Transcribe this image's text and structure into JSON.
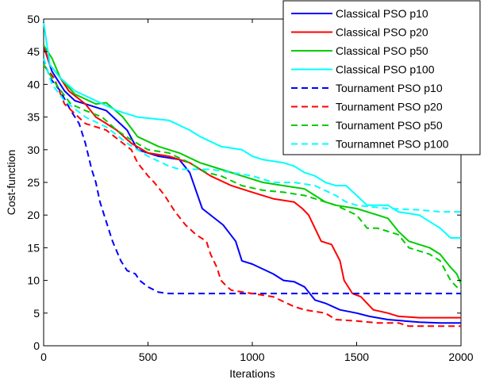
{
  "chart_data": {
    "type": "line",
    "xlabel": "Iterations",
    "ylabel": "Cost-function",
    "xlim": [
      0,
      2000
    ],
    "ylim": [
      0,
      50
    ],
    "xticks": [
      0,
      500,
      1000,
      1500,
      2000
    ],
    "yticks": [
      0,
      5,
      10,
      15,
      20,
      25,
      30,
      35,
      40,
      45,
      50
    ],
    "grid": false,
    "legend_position": "top-right",
    "series": [
      {
        "name": "Classical PSO p10",
        "color": "#0000ff",
        "dash": "solid",
        "points": [
          [
            0,
            45.8
          ],
          [
            40,
            42
          ],
          [
            100,
            39
          ],
          [
            150,
            37.5
          ],
          [
            200,
            37
          ],
          [
            300,
            36
          ],
          [
            400,
            33
          ],
          [
            450,
            30
          ],
          [
            550,
            29
          ],
          [
            650,
            28.5
          ],
          [
            700,
            26.5
          ],
          [
            760,
            21
          ],
          [
            860,
            18.5
          ],
          [
            920,
            16
          ],
          [
            950,
            13
          ],
          [
            1000,
            12.5
          ],
          [
            1100,
            11
          ],
          [
            1150,
            10
          ],
          [
            1200,
            9.8
          ],
          [
            1250,
            9
          ],
          [
            1300,
            7
          ],
          [
            1350,
            6.5
          ],
          [
            1420,
            5.5
          ],
          [
            1500,
            5
          ],
          [
            1560,
            4.5
          ],
          [
            1650,
            4
          ],
          [
            1800,
            3.6
          ],
          [
            1900,
            3.5
          ],
          [
            2000,
            3.5
          ]
        ]
      },
      {
        "name": "Classical PSO p20",
        "color": "#ff0000",
        "dash": "solid",
        "points": [
          [
            0,
            46
          ],
          [
            30,
            43
          ],
          [
            80,
            41
          ],
          [
            120,
            39
          ],
          [
            200,
            37
          ],
          [
            250,
            35
          ],
          [
            350,
            33
          ],
          [
            420,
            31
          ],
          [
            500,
            29.5
          ],
          [
            600,
            29
          ],
          [
            700,
            28
          ],
          [
            800,
            26
          ],
          [
            900,
            24.5
          ],
          [
            1000,
            23.5
          ],
          [
            1100,
            22.5
          ],
          [
            1200,
            22
          ],
          [
            1240,
            21
          ],
          [
            1270,
            20
          ],
          [
            1300,
            18
          ],
          [
            1330,
            16
          ],
          [
            1380,
            15.5
          ],
          [
            1420,
            13
          ],
          [
            1440,
            10
          ],
          [
            1480,
            8
          ],
          [
            1520,
            7.5
          ],
          [
            1580,
            5.5
          ],
          [
            1650,
            5
          ],
          [
            1700,
            4.5
          ],
          [
            1800,
            4.3
          ],
          [
            1900,
            4.3
          ],
          [
            2000,
            4.3
          ]
        ]
      },
      {
        "name": "Classical PSO p50",
        "color": "#00cc00",
        "dash": "solid",
        "points": [
          [
            0,
            46
          ],
          [
            40,
            44
          ],
          [
            80,
            41
          ],
          [
            150,
            38.5
          ],
          [
            250,
            37
          ],
          [
            300,
            37.2
          ],
          [
            380,
            35
          ],
          [
            450,
            32
          ],
          [
            550,
            30.5
          ],
          [
            650,
            29.5
          ],
          [
            750,
            28
          ],
          [
            850,
            27
          ],
          [
            950,
            26
          ],
          [
            1050,
            25
          ],
          [
            1150,
            24.5
          ],
          [
            1250,
            24
          ],
          [
            1300,
            23
          ],
          [
            1350,
            22
          ],
          [
            1400,
            21.5
          ],
          [
            1500,
            21
          ],
          [
            1600,
            20
          ],
          [
            1650,
            19.5
          ],
          [
            1700,
            17.5
          ],
          [
            1750,
            16
          ],
          [
            1850,
            15
          ],
          [
            1900,
            14
          ],
          [
            1950,
            12
          ],
          [
            1980,
            11
          ],
          [
            2000,
            9.5
          ]
        ]
      },
      {
        "name": "Classical PSO p100",
        "color": "#00ffff",
        "dash": "solid",
        "points": [
          [
            0,
            49.5
          ],
          [
            30,
            43
          ],
          [
            80,
            41
          ],
          [
            150,
            39
          ],
          [
            250,
            37.5
          ],
          [
            350,
            36
          ],
          [
            450,
            35
          ],
          [
            600,
            34.5
          ],
          [
            700,
            33
          ],
          [
            750,
            32
          ],
          [
            850,
            30.5
          ],
          [
            950,
            30
          ],
          [
            1000,
            29
          ],
          [
            1050,
            28.5
          ],
          [
            1150,
            28
          ],
          [
            1200,
            27.5
          ],
          [
            1250,
            26.5
          ],
          [
            1300,
            26
          ],
          [
            1350,
            25
          ],
          [
            1400,
            24.5
          ],
          [
            1450,
            24.5
          ],
          [
            1500,
            23
          ],
          [
            1550,
            21.5
          ],
          [
            1650,
            21.5
          ],
          [
            1700,
            20.5
          ],
          [
            1800,
            20
          ],
          [
            1900,
            18
          ],
          [
            1950,
            16.5
          ],
          [
            2000,
            16.5
          ]
        ]
      },
      {
        "name": "Tournament PSO p10",
        "color": "#0000ff",
        "dash": "dashed",
        "points": [
          [
            0,
            44
          ],
          [
            30,
            41
          ],
          [
            80,
            39
          ],
          [
            130,
            36
          ],
          [
            170,
            34
          ],
          [
            200,
            31
          ],
          [
            230,
            27
          ],
          [
            250,
            25
          ],
          [
            270,
            22
          ],
          [
            300,
            19
          ],
          [
            330,
            16
          ],
          [
            370,
            13
          ],
          [
            400,
            11.5
          ],
          [
            440,
            11
          ],
          [
            460,
            10
          ],
          [
            500,
            9
          ],
          [
            550,
            8.2
          ],
          [
            600,
            8
          ],
          [
            700,
            8
          ],
          [
            1000,
            8
          ],
          [
            1500,
            8
          ],
          [
            2000,
            8
          ]
        ]
      },
      {
        "name": "Tournament PSO p20",
        "color": "#ff0000",
        "dash": "dashed",
        "points": [
          [
            0,
            43
          ],
          [
            50,
            41
          ],
          [
            100,
            37
          ],
          [
            200,
            34
          ],
          [
            300,
            33
          ],
          [
            380,
            31
          ],
          [
            420,
            30
          ],
          [
            450,
            28
          ],
          [
            500,
            26
          ],
          [
            530,
            25
          ],
          [
            580,
            23
          ],
          [
            630,
            20.5
          ],
          [
            680,
            18.5
          ],
          [
            730,
            17
          ],
          [
            780,
            16
          ],
          [
            800,
            14
          ],
          [
            830,
            12
          ],
          [
            850,
            10
          ],
          [
            880,
            9
          ],
          [
            900,
            8.5
          ],
          [
            1000,
            8
          ],
          [
            1100,
            7.5
          ],
          [
            1200,
            6
          ],
          [
            1250,
            5.5
          ],
          [
            1350,
            5
          ],
          [
            1400,
            4
          ],
          [
            1500,
            3.8
          ],
          [
            1600,
            3.5
          ],
          [
            1700,
            3.5
          ],
          [
            1750,
            3
          ],
          [
            1850,
            3
          ],
          [
            2000,
            3
          ]
        ]
      },
      {
        "name": "Tournament PSO p50",
        "color": "#00cc00",
        "dash": "dashed",
        "points": [
          [
            0,
            43
          ],
          [
            60,
            40
          ],
          [
            130,
            37
          ],
          [
            200,
            36
          ],
          [
            280,
            35
          ],
          [
            350,
            33
          ],
          [
            420,
            31.5
          ],
          [
            500,
            30
          ],
          [
            600,
            29.5
          ],
          [
            700,
            28
          ],
          [
            780,
            26.5
          ],
          [
            850,
            26
          ],
          [
            950,
            24.5
          ],
          [
            1050,
            23.8
          ],
          [
            1150,
            23.5
          ],
          [
            1250,
            23
          ],
          [
            1300,
            22.5
          ],
          [
            1350,
            22
          ],
          [
            1400,
            21.5
          ],
          [
            1500,
            20
          ],
          [
            1550,
            18
          ],
          [
            1600,
            18
          ],
          [
            1700,
            17
          ],
          [
            1750,
            15
          ],
          [
            1850,
            14
          ],
          [
            1900,
            13
          ],
          [
            1950,
            10
          ],
          [
            1980,
            9
          ],
          [
            2000,
            8.5
          ]
        ]
      },
      {
        "name": "Tournamnet PSO p100",
        "color": "#00ffff",
        "dash": "dashed",
        "points": [
          [
            0,
            44
          ],
          [
            40,
            40
          ],
          [
            100,
            37.5
          ],
          [
            200,
            35
          ],
          [
            300,
            33.5
          ],
          [
            400,
            31
          ],
          [
            500,
            29
          ],
          [
            600,
            27.5
          ],
          [
            650,
            27
          ],
          [
            800,
            27
          ],
          [
            900,
            26.5
          ],
          [
            1000,
            26
          ],
          [
            1100,
            25
          ],
          [
            1200,
            25
          ],
          [
            1300,
            24.5
          ],
          [
            1400,
            23
          ],
          [
            1450,
            22
          ],
          [
            1500,
            21.5
          ],
          [
            1650,
            21
          ],
          [
            1800,
            20.8
          ],
          [
            1900,
            20.5
          ],
          [
            2000,
            20.5
          ]
        ]
      }
    ]
  }
}
